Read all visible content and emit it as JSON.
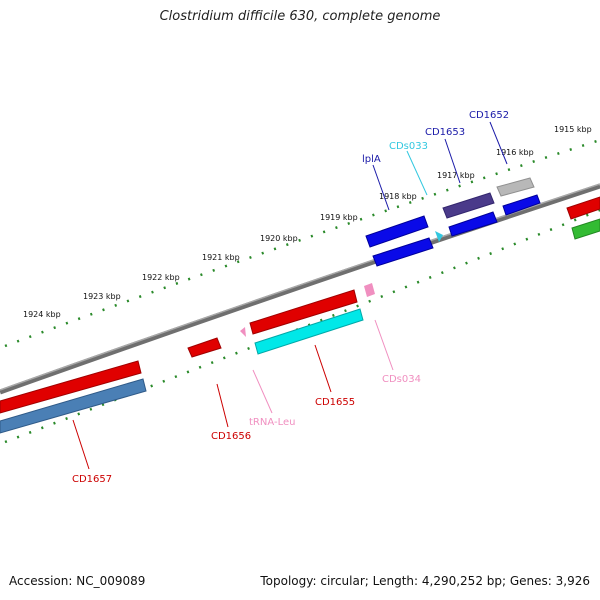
{
  "title": "Clostridium difficile 630, complete genome",
  "footer": {
    "accession": "Accession: NC_009089",
    "topology": "Topology: circular; Length: 4,290,252 bp; Genes: 3,926"
  },
  "scale_labels": [
    "1915 kbp",
    "1916 kbp",
    "1917 kbp",
    "1918 kbp",
    "1919 kbp",
    "1920 kbp",
    "1921 kbp",
    "1922 kbp",
    "1923 kbp",
    "1924 kbp"
  ],
  "gene_labels": [
    {
      "name": "CD1652",
      "color": "#1a1aa8"
    },
    {
      "name": "CD1653",
      "color": "#1a1aa8"
    },
    {
      "name": "CDs033",
      "color": "#33c8e0"
    },
    {
      "name": "lplA",
      "color": "#1a1aa8"
    },
    {
      "name": "CD1655",
      "color": "#cc0000"
    },
    {
      "name": "CDs034",
      "color": "#f08fc0"
    },
    {
      "name": "tRNA-Leu",
      "color": "#f08fc0"
    },
    {
      "name": "CD1656",
      "color": "#cc0000"
    },
    {
      "name": "CD1657",
      "color": "#cc0000"
    }
  ],
  "colors": {
    "backbone": "#8a8a8a",
    "ticks": "#2a8a2a",
    "red_gene": "#e00000",
    "blue_gene": "#0a0ae8",
    "cyan_gene": "#00e8e8",
    "steel_gene": "#4a7fb5",
    "grey_gene": "#b0b0b0",
    "navy_gene": "#4a3a8a",
    "green_gene": "#33bb33",
    "pink_rna": "#f08fc0"
  }
}
